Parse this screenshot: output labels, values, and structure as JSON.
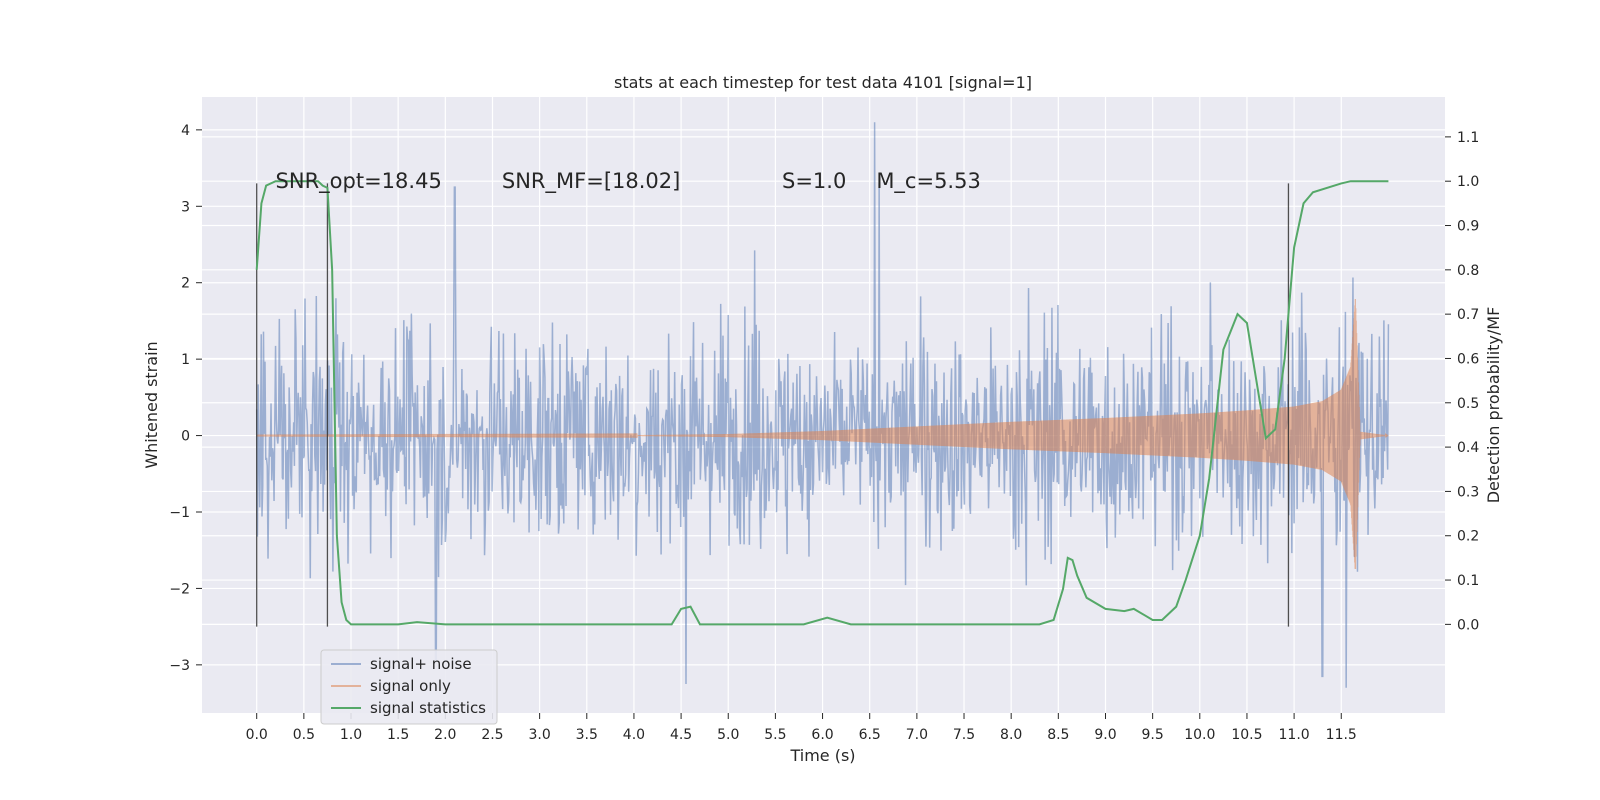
{
  "chart_data": {
    "type": "line",
    "title": "stats at each timestep for test data 4101 [signal=1]",
    "xlabel": "Time (s)",
    "ylabel_left": "Whitened strain",
    "ylabel_right": "Detection probability/MF",
    "xlim": [
      -0.58,
      12.6
    ],
    "ylim_left": [
      -3.63,
      4.43
    ],
    "ylim_right": [
      -0.2,
      1.19
    ],
    "x_ticks": [
      0.0,
      0.5,
      1.0,
      1.5,
      2.0,
      2.5,
      3.0,
      3.5,
      4.0,
      4.5,
      5.0,
      5.5,
      6.0,
      6.5,
      7.0,
      7.5,
      8.0,
      8.5,
      9.0,
      9.5,
      10.0,
      10.5,
      11.0,
      11.5
    ],
    "x_tick_labels": [
      "0.0",
      "0.5",
      "1.0",
      "1.5",
      "2.0",
      "2.5",
      "3.0",
      "3.5",
      "4.0",
      "4.5",
      "5.0",
      "5.5",
      "6.0",
      "6.5",
      "7.0",
      "7.5",
      "8.0",
      "8.5",
      "9.0",
      "9.5",
      "10.0",
      "10.5",
      "11.0",
      "11.5"
    ],
    "y_left_ticks": [
      -3,
      -2,
      -1,
      0,
      1,
      2,
      3,
      4
    ],
    "y_left_tick_labels": [
      "−3",
      "−2",
      "−1",
      "0",
      "1",
      "2",
      "3",
      "4"
    ],
    "y_right_ticks": [
      0.0,
      0.1,
      0.2,
      0.3,
      0.4,
      0.5,
      0.6,
      0.7,
      0.8,
      0.9,
      1.0,
      1.1
    ],
    "y_right_tick_labels": [
      "0.0",
      "0.1",
      "0.2",
      "0.3",
      "0.4",
      "0.5",
      "0.6",
      "0.7",
      "0.8",
      "0.9",
      "1.0",
      "1.1"
    ],
    "grid": true,
    "legend_position": "bottom-left",
    "annotations": [
      {
        "text": "SNR_opt=18.45",
        "x": 0.2,
        "y": 3.33
      },
      {
        "text": "SNR_MF=[18.02]",
        "x": 2.6,
        "y": 3.33
      },
      {
        "text": "S=1.0",
        "x": 5.57,
        "y": 3.33
      },
      {
        "text": "M_c=5.53",
        "x": 6.57,
        "y": 3.33
      }
    ],
    "vertical_markers": [
      0.0,
      0.75,
      10.94
    ],
    "series": [
      {
        "name": "signal+ noise",
        "axis": "left",
        "color": "#4c72b0",
        "style": "dense noise trace, roughly ±1.3 envelope with spikes",
        "x_range": [
          0.0,
          12.0
        ],
        "sample_count": 1500,
        "notable_peaks": [
          {
            "x": 6.55,
            "y": 4.1
          },
          {
            "x": 6.6,
            "y": 3.3
          },
          {
            "x": 4.55,
            "y": -3.25
          },
          {
            "x": 11.55,
            "y": -3.3
          },
          {
            "x": 11.3,
            "y": -3.15
          },
          {
            "x": 1.9,
            "y": -2.95
          },
          {
            "x": 2.1,
            "y": 3.25
          }
        ]
      },
      {
        "name": "signal only",
        "axis": "left",
        "color": "#dd8452",
        "style": "chirp; amplitude grows toward merger at ~11.65 s",
        "amplitude_envelope": {
          "t": [
            0.0,
            4.0,
            5.0,
            6.0,
            7.0,
            8.0,
            9.0,
            10.0,
            10.5,
            11.0,
            11.3,
            11.5,
            11.6,
            11.65,
            11.7,
            12.0
          ],
          "a": [
            0.002,
            0.005,
            0.02,
            0.06,
            0.12,
            0.18,
            0.23,
            0.29,
            0.33,
            0.38,
            0.45,
            0.6,
            0.9,
            1.8,
            0.05,
            0.0
          ]
        }
      },
      {
        "name": "signal statistics",
        "axis": "right",
        "color": "#55a868",
        "x": [
          0.0,
          0.05,
          0.1,
          0.2,
          0.3,
          0.5,
          0.65,
          0.7,
          0.75,
          0.8,
          0.85,
          0.9,
          0.95,
          1.0,
          1.5,
          1.7,
          2.0,
          3.0,
          4.0,
          4.4,
          4.5,
          4.6,
          4.7,
          5.0,
          5.8,
          6.05,
          6.3,
          7.0,
          7.5,
          8.0,
          8.3,
          8.45,
          8.55,
          8.6,
          8.65,
          8.7,
          8.8,
          9.0,
          9.2,
          9.3,
          9.5,
          9.6,
          9.75,
          9.85,
          10.0,
          10.1,
          10.25,
          10.4,
          10.5,
          10.6,
          10.7,
          10.8,
          10.9,
          11.0,
          11.1,
          11.2,
          11.5,
          11.6,
          12.0
        ],
        "values": [
          0.8,
          0.95,
          0.99,
          1.0,
          1.0,
          1.0,
          1.0,
          0.99,
          0.985,
          0.8,
          0.2,
          0.05,
          0.01,
          0.0,
          0.0,
          0.005,
          0.0,
          0.0,
          0.0,
          0.0,
          0.035,
          0.04,
          0.0,
          0.0,
          0.0,
          0.015,
          0.0,
          0.0,
          0.0,
          0.0,
          0.0,
          0.01,
          0.08,
          0.15,
          0.145,
          0.11,
          0.06,
          0.035,
          0.03,
          0.035,
          0.01,
          0.01,
          0.04,
          0.1,
          0.2,
          0.33,
          0.62,
          0.7,
          0.68,
          0.55,
          0.42,
          0.44,
          0.6,
          0.85,
          0.95,
          0.975,
          0.995,
          1.0,
          1.0
        ]
      }
    ]
  }
}
